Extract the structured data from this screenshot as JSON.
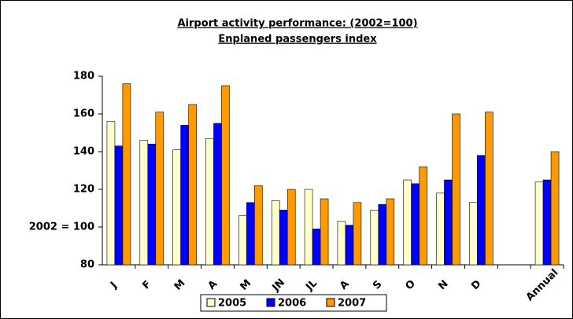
{
  "chart_data": {
    "type": "bar",
    "title": "Airport activity performance: (2002=100)",
    "subtitle": "Enplaned passengers index",
    "categories": [
      "J",
      "F",
      "M",
      "A",
      "M",
      "JN",
      "JL",
      "A",
      "S",
      "O",
      "N",
      "D",
      null,
      "Annual"
    ],
    "series": [
      {
        "name": "2005",
        "color": "#ffffcc",
        "values": [
          156,
          146,
          141,
          147,
          106,
          114,
          120,
          103,
          109,
          125,
          118,
          113,
          null,
          124
        ]
      },
      {
        "name": "2006",
        "color": "#0000ff",
        "values": [
          143,
          144,
          154,
          155,
          113,
          109,
          99,
          101,
          112,
          123,
          125,
          138,
          null,
          125
        ]
      },
      {
        "name": "2007",
        "color": "#ff9900",
        "values": [
          176,
          161,
          165,
          175,
          122,
          120,
          115,
          113,
          115,
          132,
          160,
          161,
          null,
          140
        ]
      }
    ],
    "ylim": [
      80,
      180
    ],
    "yticks": [
      80,
      {
        "value": 100,
        "label": "2002 = 100"
      },
      120,
      140,
      160,
      180
    ],
    "legend": "bottom"
  }
}
